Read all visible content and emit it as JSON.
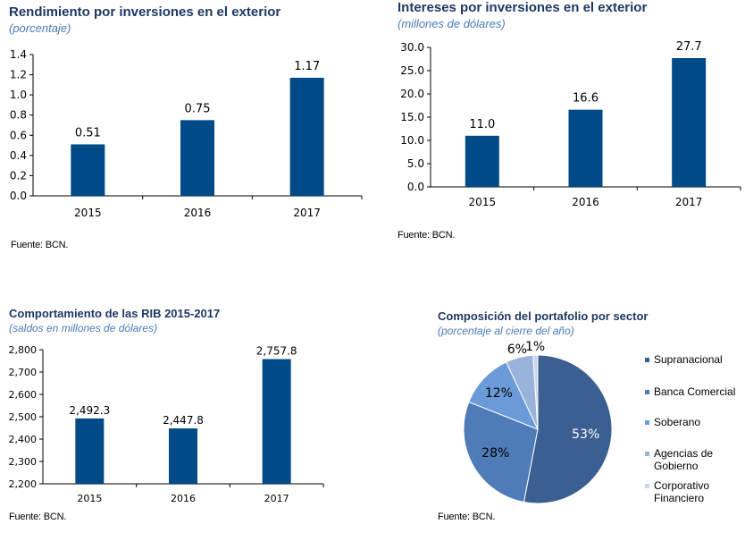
{
  "charts": {
    "rendimiento": {
      "title": "Rendimiento por inversiones en el exterior",
      "subtitle": "(porcentaje)",
      "source": "Fuente: BCN.",
      "chart_data": {
        "type": "bar",
        "categories": [
          "2015",
          "2016",
          "2017"
        ],
        "values": [
          0.51,
          0.75,
          1.17
        ],
        "value_labels": [
          "0.51",
          "0.75",
          "1.17"
        ],
        "yticks": [
          "0.0",
          "0.2",
          "0.4",
          "0.6",
          "0.8",
          "1.0",
          "1.2",
          "1.4"
        ],
        "ylim": [
          0,
          1.4
        ],
        "grid": false,
        "bar_color": "#004a87"
      }
    },
    "intereses": {
      "title": "Intereses por inversiones en el exterior",
      "subtitle": "(millones de dólares)",
      "source": "Fuente: BCN.",
      "chart_data": {
        "type": "bar",
        "categories": [
          "2015",
          "2016",
          "2017"
        ],
        "values": [
          11.0,
          16.6,
          27.7
        ],
        "value_labels": [
          "11.0",
          "16.6",
          "27.7"
        ],
        "yticks": [
          "0.0",
          "5.0",
          "10.0",
          "15.0",
          "20.0",
          "25.0",
          "30.0"
        ],
        "ylim": [
          0,
          30
        ],
        "grid": false,
        "bar_color": "#004a87"
      }
    },
    "rib": {
      "title": "Comportamiento de las RIB 2015-2017",
      "subtitle": "(saldos en millones de dólares)",
      "source": "Fuente: BCN.",
      "chart_data": {
        "type": "bar",
        "categories": [
          "2015",
          "2016",
          "2017"
        ],
        "values": [
          2492.3,
          2447.8,
          2757.8
        ],
        "value_labels": [
          "2,492.3",
          "2,447.8",
          "2,757.8"
        ],
        "yticks": [
          "2,200",
          "2,300",
          "2,400",
          "2,500",
          "2,600",
          "2,700",
          "2,800"
        ],
        "ylim": [
          2200,
          2800
        ],
        "grid": false,
        "bar_color": "#004a87"
      }
    },
    "portafolio": {
      "title": "Composición del portafolio por sector",
      "subtitle": "(porcentaje al cierre del año)",
      "source": "Fuente: BCN.",
      "chart_data": {
        "type": "pie",
        "legend_position": "right",
        "slices": [
          {
            "label": "Supranacional",
            "value": 53,
            "text": "53%",
            "color": "#3c5f92"
          },
          {
            "label": "Banca Comercial",
            "value": 28,
            "text": "28%",
            "color": "#4f7cb8"
          },
          {
            "label": "Soberano",
            "value": 12,
            "text": "12%",
            "color": "#6b9ad8"
          },
          {
            "label": "Agencias de Gobierno",
            "value": 6,
            "text": "6%",
            "color": "#9ab3da"
          },
          {
            "label": "Corporativo Financiero",
            "value": 1,
            "text": "1%",
            "color": "#c9d7ec"
          }
        ]
      }
    }
  }
}
